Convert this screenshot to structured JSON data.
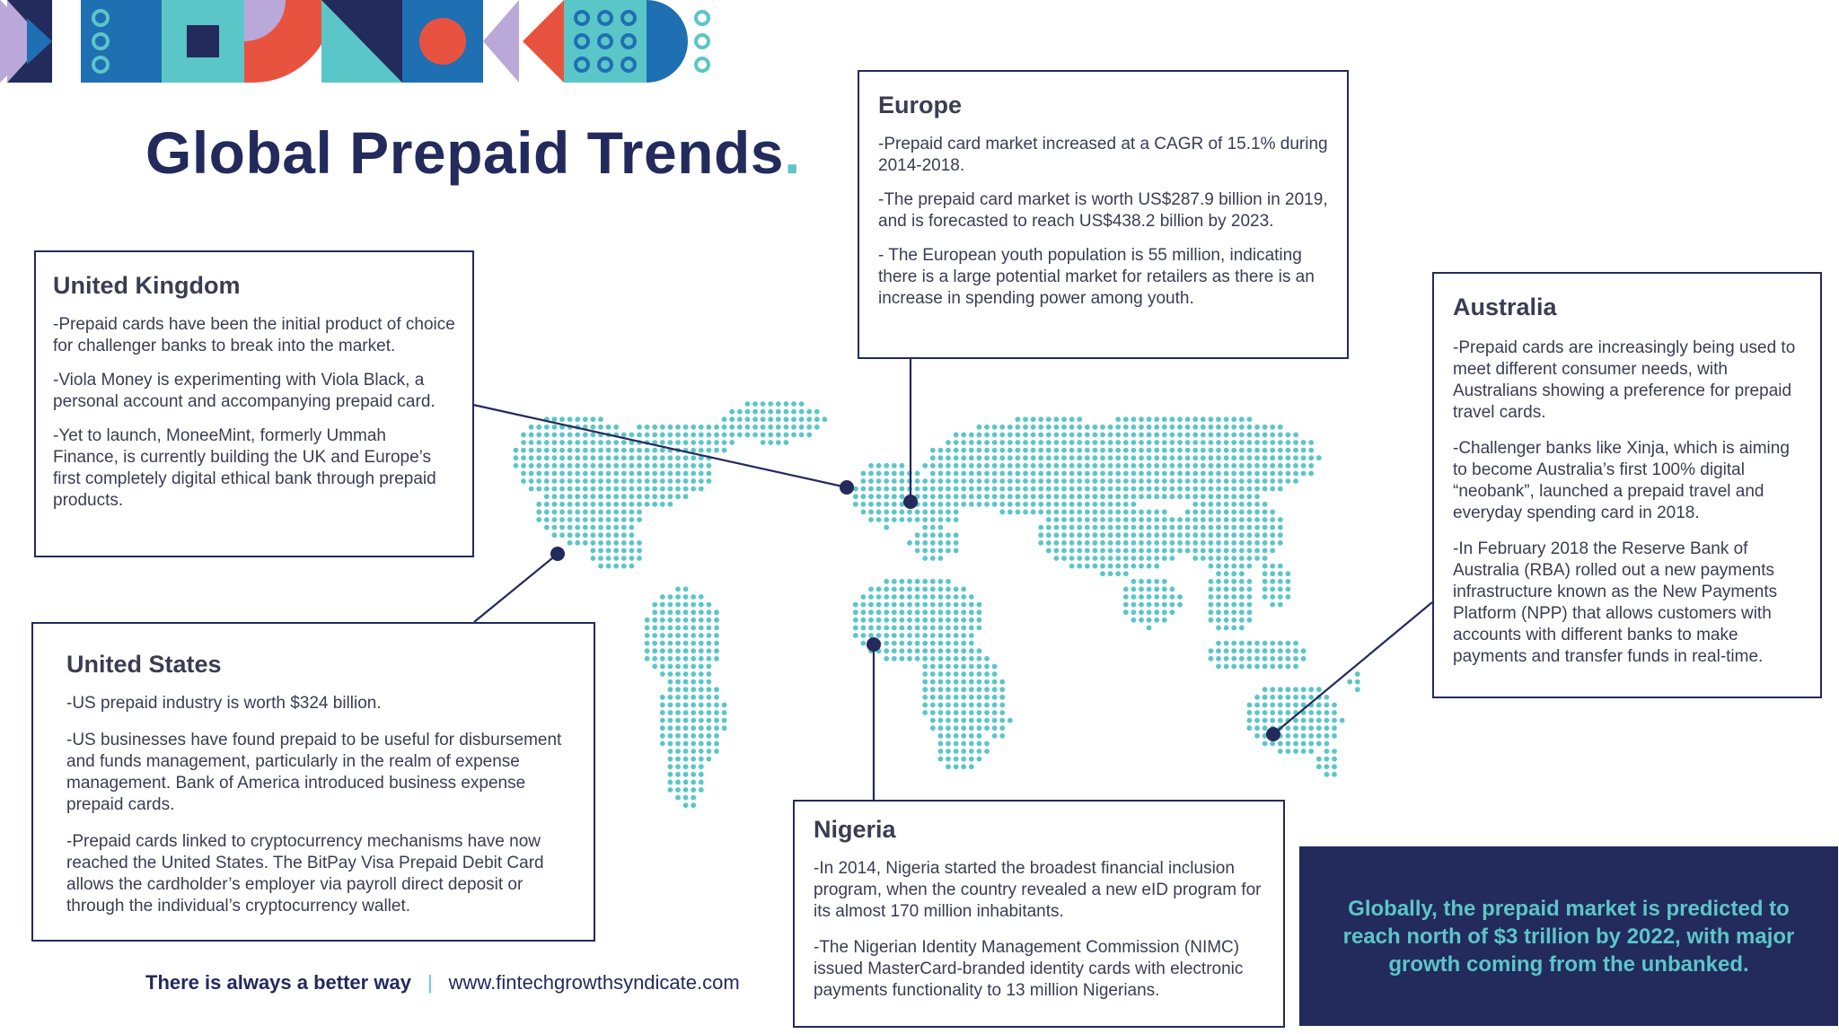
{
  "title": {
    "text": "Global Prepaid Trends",
    "dot": "."
  },
  "colors": {
    "navy": "#232a5c",
    "teal": "#5bc6c8",
    "lavender": "#b9a8d8",
    "blue": "#1f6fb3",
    "coral": "#e8533f",
    "text": "#3a3d52"
  },
  "regions": {
    "united_kingdom": {
      "heading": "United Kingdom",
      "paragraphs": [
        "-Prepaid cards have been the initial product of choice for challenger banks to break into the market.",
        "-Viola Money is experimenting with Viola Black, a personal account and accompanying prepaid card.",
        "-Yet to launch, MoneeMint, formerly Ummah Finance, is currently building the UK and Europe’s first completely digital ethical bank through prepaid products."
      ]
    },
    "united_states": {
      "heading": "United States",
      "paragraphs": [
        "-US prepaid industry is worth $324 billion.",
        "-US businesses have found prepaid to be useful for disbursement and funds management, particularly in the realm of expense management. Bank of America introduced business expense prepaid cards.",
        "-Prepaid cards linked to cryptocurrency mechanisms have now reached the United States. The BitPay Visa Prepaid Debit Card allows the cardholder’s employer via payroll direct deposit or through the individual’s cryptocurrency wallet."
      ]
    },
    "europe": {
      "heading": "Europe",
      "paragraphs": [
        "-Prepaid card market increased at a CAGR of 15.1% during 2014-2018.",
        "-The prepaid card market is worth US$287.9 billion in 2019, and is forecasted to reach US$438.2 billion by 2023.",
        "- The European youth population is 55 million, indicating there is a large potential market for retailers as there is an increase in spending power among youth."
      ]
    },
    "nigeria": {
      "heading": "Nigeria",
      "paragraphs": [
        "-In 2014, Nigeria started the broadest financial inclusion program, when the country revealed a new eID program for its almost 170 million inhabitants.",
        "-The Nigerian Identity Management Commission (NIMC) issued MasterCard-branded identity cards with electronic payments functionality to 13 million Nigerians."
      ]
    },
    "australia": {
      "heading": "Australia",
      "paragraphs": [
        "-Prepaid cards are increasingly being used to meet different consumer needs, with Australians showing a preference for prepaid travel cards.",
        "-Challenger banks like Xinja, which is aiming to become Australia’s first 100% digital “neobank”, launched a prepaid travel and everyday spending card in 2018.",
        "-In February 2018 the Reserve Bank of Australia (RBA) rolled out a new payments infrastructure known as the New Payments Platform (NPP) that allows customers with accounts with different banks to make payments and transfer funds in real-time."
      ]
    }
  },
  "callout": {
    "text": "Globally, the prepaid market is predicted to reach north of $3 trillion by 2022, with major growth coming from the unbanked."
  },
  "footer": {
    "tagline": "There is always a better way",
    "separator": "|",
    "url": "www.fintechgrowthsyndicate.com"
  }
}
